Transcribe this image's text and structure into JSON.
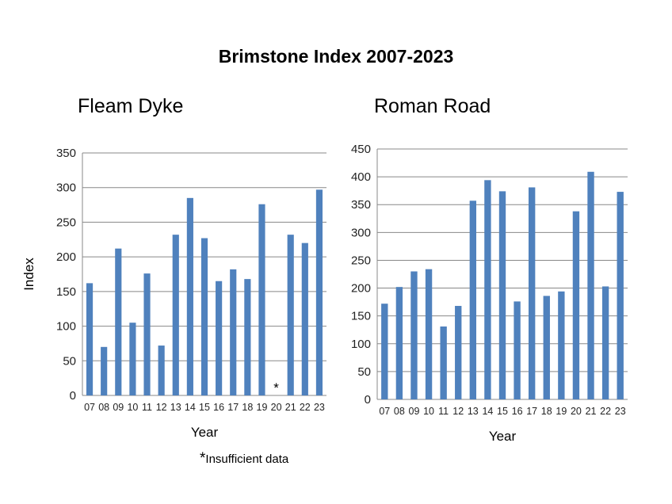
{
  "title": "Brimstone Index 2007-2023",
  "footnote": {
    "marker": "*",
    "text": "Insufficient data"
  },
  "colors": {
    "bar": "#4F81BD",
    "grid": "#888888",
    "axis": "#888888"
  },
  "chart_data": [
    {
      "type": "bar",
      "title": "Fleam Dyke",
      "xlabel": "Year",
      "ylabel": "Index",
      "ylim": [
        0,
        350
      ],
      "yticks": [
        0,
        50,
        100,
        150,
        200,
        250,
        300,
        350
      ],
      "grid": true,
      "categories": [
        "07",
        "08",
        "09",
        "10",
        "11",
        "12",
        "13",
        "14",
        "15",
        "16",
        "17",
        "18",
        "19",
        "20",
        "21",
        "22",
        "23"
      ],
      "values": [
        162,
        70,
        212,
        105,
        176,
        72,
        232,
        285,
        227,
        165,
        182,
        168,
        276,
        null,
        232,
        220,
        297
      ],
      "annotations": [
        {
          "category": "20",
          "text": "*"
        }
      ]
    },
    {
      "type": "bar",
      "title": "Roman Road",
      "xlabel": "Year",
      "ylabel": "",
      "ylim": [
        0,
        450
      ],
      "yticks": [
        0,
        50,
        100,
        150,
        200,
        250,
        300,
        350,
        400,
        450
      ],
      "grid": true,
      "categories": [
        "07",
        "08",
        "09",
        "10",
        "11",
        "12",
        "13",
        "14",
        "15",
        "16",
        "17",
        "18",
        "19",
        "20",
        "21",
        "22",
        "23"
      ],
      "values": [
        172,
        202,
        230,
        234,
        131,
        168,
        357,
        394,
        374,
        176,
        381,
        186,
        194,
        338,
        409,
        203,
        373
      ],
      "annotations": []
    }
  ]
}
